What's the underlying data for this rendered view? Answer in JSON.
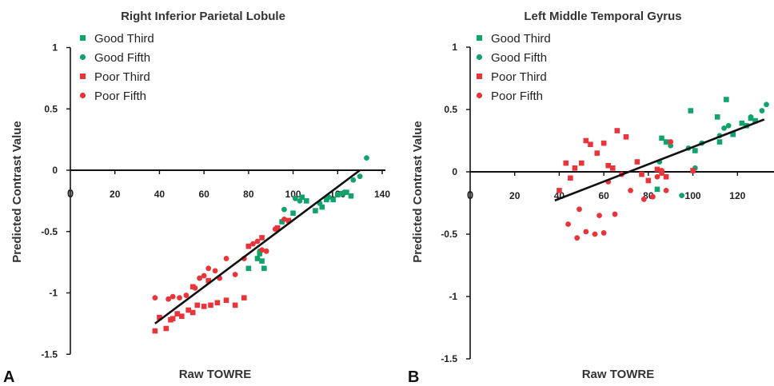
{
  "colors": {
    "good": "#11a36b",
    "poor": "#e8353b",
    "axis": "#111111",
    "line": "#111111"
  },
  "chart_data": [
    {
      "panel_label": "A",
      "type": "scatter",
      "title": "Right Inferior Parietal Lobule",
      "xlabel": "Raw TOWRE",
      "ylabel": "Predicted Contrast Value",
      "xlim": [
        0,
        140
      ],
      "ylim": [
        -1.5,
        1
      ],
      "x_ticks": [
        "20",
        "40",
        "60",
        "80",
        "100",
        "120",
        "140"
      ],
      "y_ticks": [
        "1",
        "0.5",
        "0",
        "-0.5",
        "-1",
        "-1.5"
      ],
      "origin_marker": "0",
      "legend": [
        "Good Third",
        "Good Fifth",
        "Poor Third",
        "Poor Fifth"
      ],
      "series": [
        {
          "name": "Good Third",
          "marker": "square",
          "color": "good",
          "points": [
            [
              84,
              -0.72
            ],
            [
              85,
              -0.68
            ],
            [
              86,
              -0.74
            ],
            [
              87,
              -0.8
            ],
            [
              80,
              -0.8
            ],
            [
              95,
              -0.42
            ],
            [
              100,
              -0.35
            ],
            [
              104,
              -0.22
            ],
            [
              106,
              -0.25
            ],
            [
              110,
              -0.33
            ],
            [
              113,
              -0.3
            ],
            [
              115,
              -0.24
            ],
            [
              118,
              -0.24
            ],
            [
              120,
              -0.2
            ],
            [
              122,
              -0.19
            ],
            [
              124,
              -0.18
            ],
            [
              126,
              -0.21
            ]
          ]
        },
        {
          "name": "Good Fifth",
          "marker": "circle",
          "color": "good",
          "points": [
            [
              85,
              -0.66
            ],
            [
              93,
              -0.48
            ],
            [
              96,
              -0.32
            ],
            [
              101,
              -0.23
            ],
            [
              103,
              -0.25
            ],
            [
              112,
              -0.27
            ],
            [
              116,
              -0.22
            ],
            [
              123,
              -0.18
            ],
            [
              127,
              -0.08
            ],
            [
              130,
              -0.05
            ],
            [
              133,
              0.1
            ]
          ]
        },
        {
          "name": "Poor Third",
          "marker": "square",
          "color": "poor",
          "points": [
            [
              38,
              -1.31
            ],
            [
              43,
              -1.29
            ],
            [
              46,
              -1.21
            ],
            [
              48,
              -1.17
            ],
            [
              50,
              -1.19
            ],
            [
              53,
              -1.14
            ],
            [
              55,
              -1.16
            ],
            [
              57,
              -1.1
            ],
            [
              60,
              -1.11
            ],
            [
              63,
              -1.1
            ],
            [
              66,
              -1.08
            ],
            [
              70,
              -1.06
            ],
            [
              74,
              -1.1
            ],
            [
              78,
              -1.04
            ],
            [
              40,
              -1.2
            ],
            [
              45,
              -1.22
            ],
            [
              55,
              -0.95
            ],
            [
              62,
              -0.9
            ],
            [
              80,
              -0.62
            ],
            [
              86,
              -0.55
            ],
            [
              93,
              -0.47
            ],
            [
              98,
              -0.41
            ]
          ]
        },
        {
          "name": "Poor Fifth",
          "marker": "circle",
          "color": "poor",
          "points": [
            [
              38,
              -1.04
            ],
            [
              44,
              -1.05
            ],
            [
              46,
              -1.03
            ],
            [
              49,
              -1.04
            ],
            [
              52,
              -1.02
            ],
            [
              56,
              -0.96
            ],
            [
              58,
              -0.88
            ],
            [
              60,
              -0.86
            ],
            [
              62,
              -0.8
            ],
            [
              65,
              -0.82
            ],
            [
              67,
              -0.88
            ],
            [
              70,
              -0.72
            ],
            [
              74,
              -0.85
            ],
            [
              78,
              -0.72
            ],
            [
              80,
              -0.62
            ],
            [
              82,
              -0.6
            ],
            [
              84,
              -0.58
            ],
            [
              86,
              -0.65
            ],
            [
              88,
              -0.66
            ],
            [
              92,
              -0.48
            ],
            [
              96,
              -0.4
            ]
          ]
        }
      ],
      "trend_line": [
        [
          38,
          -1.25
        ],
        [
          130,
          0.0
        ]
      ]
    },
    {
      "panel_label": "B",
      "type": "scatter",
      "title": "Left Middle Temporal Gyrus",
      "xlabel": "Raw TOWRE",
      "ylabel": "Predicted Contrast Value",
      "xlim": [
        0,
        140
      ],
      "ylim": [
        -1.5,
        1
      ],
      "x_ticks": [
        "20",
        "40",
        "60",
        "80",
        "100",
        "120",
        "140"
      ],
      "y_ticks": [
        "1",
        "0.5",
        "0",
        "-0.5",
        "-1",
        "-1.5"
      ],
      "origin_marker": "0",
      "legend": [
        "Good Third",
        "Good Fifth",
        "Poor Third",
        "Poor Fifth"
      ],
      "series": [
        {
          "name": "Good Third",
          "marker": "square",
          "color": "good",
          "points": [
            [
              84,
              -0.14
            ],
            [
              86,
              0.27
            ],
            [
              88,
              0.24
            ],
            [
              99,
              0.49
            ],
            [
              101,
              0.17
            ],
            [
              111,
              0.44
            ],
            [
              112,
              0.24
            ],
            [
              115,
              0.58
            ],
            [
              118,
              0.3
            ],
            [
              122,
              0.39
            ],
            [
              124,
              0.37
            ],
            [
              126,
              0.43
            ],
            [
              128,
              0.41
            ]
          ]
        },
        {
          "name": "Good Fifth",
          "marker": "circle",
          "color": "good",
          "points": [
            [
              85,
              0.08
            ],
            [
              90,
              0.21
            ],
            [
              95,
              -0.19
            ],
            [
              98,
              0.19
            ],
            [
              101,
              0.03
            ],
            [
              104,
              0.23
            ],
            [
              112,
              0.29
            ],
            [
              114,
              0.35
            ],
            [
              116,
              0.37
            ],
            [
              126,
              0.44
            ],
            [
              131,
              0.49
            ],
            [
              133,
              0.54
            ]
          ]
        },
        {
          "name": "Poor Third",
          "marker": "square",
          "color": "poor",
          "points": [
            [
              40,
              -0.15
            ],
            [
              43,
              0.07
            ],
            [
              45,
              -0.05
            ],
            [
              47,
              0.03
            ],
            [
              50,
              0.07
            ],
            [
              52,
              0.25
            ],
            [
              54,
              0.22
            ],
            [
              57,
              0.15
            ],
            [
              60,
              0.23
            ],
            [
              62,
              0.05
            ],
            [
              64,
              0.03
            ],
            [
              66,
              0.33
            ],
            [
              70,
              0.28
            ],
            [
              75,
              0.08
            ],
            [
              77,
              -0.02
            ],
            [
              80,
              -0.07
            ],
            [
              84,
              0.02
            ],
            [
              86,
              -0.01
            ],
            [
              88,
              -0.04
            ],
            [
              100,
              0.01
            ]
          ]
        },
        {
          "name": "Poor Fifth",
          "marker": "circle",
          "color": "poor",
          "points": [
            [
              44,
              -0.42
            ],
            [
              48,
              -0.53
            ],
            [
              49,
              -0.3
            ],
            [
              52,
              -0.48
            ],
            [
              56,
              -0.5
            ],
            [
              58,
              -0.35
            ],
            [
              60,
              -0.49
            ],
            [
              62,
              -0.08
            ],
            [
              65,
              -0.34
            ],
            [
              68,
              -0.02
            ],
            [
              72,
              -0.15
            ],
            [
              78,
              -0.22
            ],
            [
              82,
              -0.2
            ],
            [
              84,
              -0.04
            ],
            [
              86,
              0.01
            ],
            [
              88,
              -0.15
            ],
            [
              90,
              0.24
            ]
          ]
        }
      ],
      "trend_line": [
        [
          38,
          -0.23
        ],
        [
          132,
          0.42
        ]
      ]
    }
  ]
}
